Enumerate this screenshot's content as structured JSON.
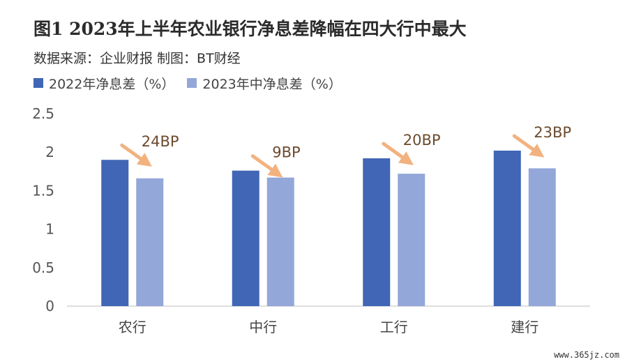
{
  "header": {
    "title": "图1 2023年上半年农业银行净息差降幅在四大行中最大",
    "subtitle": "数据来源：企业财报 制图：BT财经"
  },
  "legend": {
    "items": [
      {
        "label": "2022年净息差（%）",
        "color": "#4066B5"
      },
      {
        "label": "2023年中净息差（%）",
        "color": "#93A7D9"
      }
    ]
  },
  "colors": {
    "series_2022": "#4066B5",
    "series_2023": "#93A7D9",
    "arrow": "#F2B27F",
    "annotation_text": "#6B4A2E",
    "axis": "#BFBFBF",
    "tick_text": "#555555"
  },
  "chart_data": {
    "type": "bar",
    "categories": [
      "农行",
      "中行",
      "工行",
      "建行"
    ],
    "series": [
      {
        "name": "2022年净息差（%）",
        "values": [
          1.9,
          1.76,
          1.92,
          2.02
        ]
      },
      {
        "name": "2023年中净息差（%）",
        "values": [
          1.66,
          1.67,
          1.72,
          1.79
        ]
      }
    ],
    "ylim": [
      0,
      2.5
    ],
    "yticks": [
      "0",
      "0.5",
      "1",
      "1.5",
      "2",
      "2.5"
    ],
    "grid": false,
    "legend_position": "top-left",
    "annotations": [
      "24BP",
      "9BP",
      "20BP",
      "23BP"
    ]
  },
  "watermark": "www.365jz.com"
}
